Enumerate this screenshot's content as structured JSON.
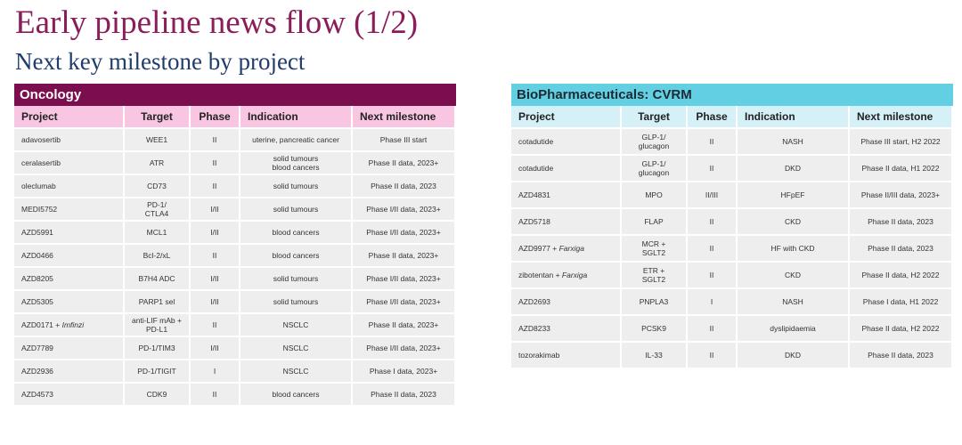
{
  "title": "Early pipeline news flow (1/2)",
  "subtitle": "Next key milestone by project",
  "oncology": {
    "header": "Oncology",
    "columns": [
      "Project",
      "Target",
      "Phase",
      "Indication",
      "Next milestone"
    ],
    "rows": [
      {
        "project": "adavosertib",
        "suffix": "",
        "target1": "WEE1",
        "target2": "",
        "phase": "II",
        "ind1": "uterine, pancreatic cancer",
        "ind2": "",
        "milestone": "Phase III start"
      },
      {
        "project": "ceralasertib",
        "suffix": "",
        "target1": "ATR",
        "target2": "",
        "phase": "II",
        "ind1": "solid tumours",
        "ind2": "blood cancers",
        "milestone": "Phase II data, 2023+"
      },
      {
        "project": "oleclumab",
        "suffix": "",
        "target1": "CD73",
        "target2": "",
        "phase": "II",
        "ind1": "solid tumours",
        "ind2": "",
        "milestone": "Phase II data, 2023"
      },
      {
        "project": "MEDI5752",
        "suffix": "",
        "target1": "PD-1/",
        "target2": "CTLA4",
        "phase": "I/II",
        "ind1": "solid tumours",
        "ind2": "",
        "milestone": "Phase I/II data, 2023+"
      },
      {
        "project": "AZD5991",
        "suffix": "",
        "target1": "MCL1",
        "target2": "",
        "phase": "I/II",
        "ind1": "blood cancers",
        "ind2": "",
        "milestone": "Phase I/II data, 2023+"
      },
      {
        "project": "AZD0466",
        "suffix": "",
        "target1": "Bcl-2/xL",
        "target2": "",
        "phase": "II",
        "ind1": "blood cancers",
        "ind2": "",
        "milestone": "Phase II data, 2023+"
      },
      {
        "project": "AZD8205",
        "suffix": "",
        "target1": "B7H4 ADC",
        "target2": "",
        "phase": "I/II",
        "ind1": "solid tumours",
        "ind2": "",
        "milestone": "Phase I/II data, 2023+"
      },
      {
        "project": "AZD5305",
        "suffix": "",
        "target1": "PARP1 sel",
        "target2": "",
        "phase": "I/II",
        "ind1": "solid tumours",
        "ind2": "",
        "milestone": "Phase I/II data, 2023+"
      },
      {
        "project": "AZD0171 + ",
        "suffix": "Imfinzi",
        "target1": "anti-LIF mAb +",
        "target2": "PD-L1",
        "phase": "II",
        "ind1": "NSCLC",
        "ind2": "",
        "milestone": "Phase II data, 2023+"
      },
      {
        "project": "AZD7789",
        "suffix": "",
        "target1": "PD-1/TIM3",
        "target2": "",
        "phase": "I/II",
        "ind1": "NSCLC",
        "ind2": "",
        "milestone": "Phase I/II data, 2023+"
      },
      {
        "project": "AZD2936",
        "suffix": "",
        "target1": "PD-1/TIGIT",
        "target2": "",
        "phase": "I",
        "ind1": "NSCLC",
        "ind2": "",
        "milestone": "Phase I data, 2023+"
      },
      {
        "project": "AZD4573",
        "suffix": "",
        "target1": "CDK9",
        "target2": "",
        "phase": "II",
        "ind1": "blood cancers",
        "ind2": "",
        "milestone": "Phase II data, 2023"
      }
    ]
  },
  "cvrm": {
    "header": "BioPharmaceuticals: CVRM",
    "columns": [
      "Project",
      "Target",
      "Phase",
      "Indication",
      "Next milestone"
    ],
    "rows": [
      {
        "project": "cotadutide",
        "suffix": "",
        "target1": "GLP-1/",
        "target2": "glucagon",
        "phase": "II",
        "ind1": "NASH",
        "ind2": "",
        "milestone": "Phase III start, H2 2022"
      },
      {
        "project": "cotadutide",
        "suffix": "",
        "target1": "GLP-1/",
        "target2": "glucagon",
        "phase": "II",
        "ind1": "DKD",
        "ind2": "",
        "milestone": "Phase II data, H1 2022"
      },
      {
        "project": "AZD4831",
        "suffix": "",
        "target1": "MPO",
        "target2": "",
        "phase": "II/III",
        "ind1": "HFpEF",
        "ind2": "",
        "milestone": "Phase II/III data, 2023+"
      },
      {
        "project": "AZD5718",
        "suffix": "",
        "target1": "FLAP",
        "target2": "",
        "phase": "II",
        "ind1": "CKD",
        "ind2": "",
        "milestone": "Phase II data, 2023"
      },
      {
        "project": "AZD9977 + ",
        "suffix": "Farxiga",
        "target1": "MCR +",
        "target2": "SGLT2",
        "phase": "II",
        "ind1": "HF with CKD",
        "ind2": "",
        "milestone": "Phase II data, 2023"
      },
      {
        "project": "zibotentan + ",
        "suffix": "Farxiga",
        "target1": "ETR +",
        "target2": "SGLT2",
        "phase": "II",
        "ind1": "CKD",
        "ind2": "",
        "milestone": "Phase II data, H2 2022"
      },
      {
        "project": "AZD2693",
        "suffix": "",
        "target1": "PNPLA3",
        "target2": "",
        "phase": "I",
        "ind1": "NASH",
        "ind2": "",
        "milestone": "Phase I data, H1 2022"
      },
      {
        "project": "AZD8233",
        "suffix": "",
        "target1": "PCSK9",
        "target2": "",
        "phase": "II",
        "ind1": "dyslipidaemia",
        "ind2": "",
        "milestone": "Phase II data, H2 2022"
      },
      {
        "project": "tozorakimab",
        "suffix": "",
        "target1": "IL-33",
        "target2": "",
        "phase": "II",
        "ind1": "DKD",
        "ind2": "",
        "milestone": "Phase II data, 2023"
      }
    ]
  }
}
